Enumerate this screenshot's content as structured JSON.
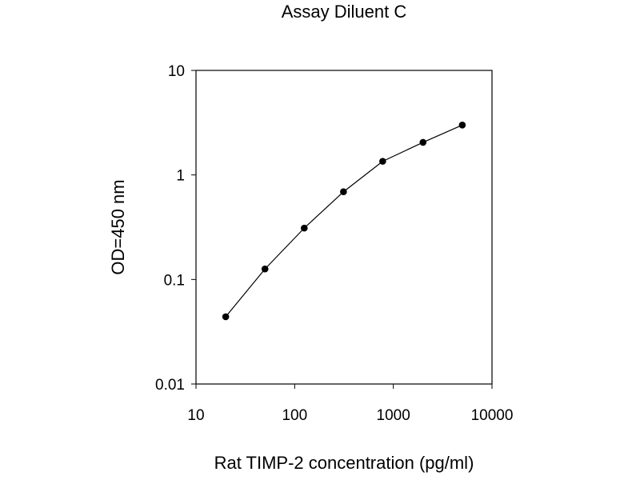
{
  "chart_data": {
    "type": "line",
    "title": "Assay Diluent C",
    "xlabel": "Rat TIMP-2 concentration (pg/ml)",
    "ylabel": "OD=450 nm",
    "xscale": "log",
    "yscale": "log",
    "xlim": [
      10,
      10000
    ],
    "ylim": [
      0.01,
      10
    ],
    "x_ticks": [
      "10",
      "100",
      "1000",
      "10000"
    ],
    "y_ticks": [
      "0.01",
      "0.1",
      "1",
      "10"
    ],
    "grid": false,
    "legend": "none",
    "series": [
      {
        "x": [
          20,
          50,
          125,
          312.5,
          780,
          2000,
          5000
        ],
        "y": [
          0.044,
          0.126,
          0.31,
          0.69,
          1.35,
          2.05,
          3.0
        ]
      }
    ]
  }
}
